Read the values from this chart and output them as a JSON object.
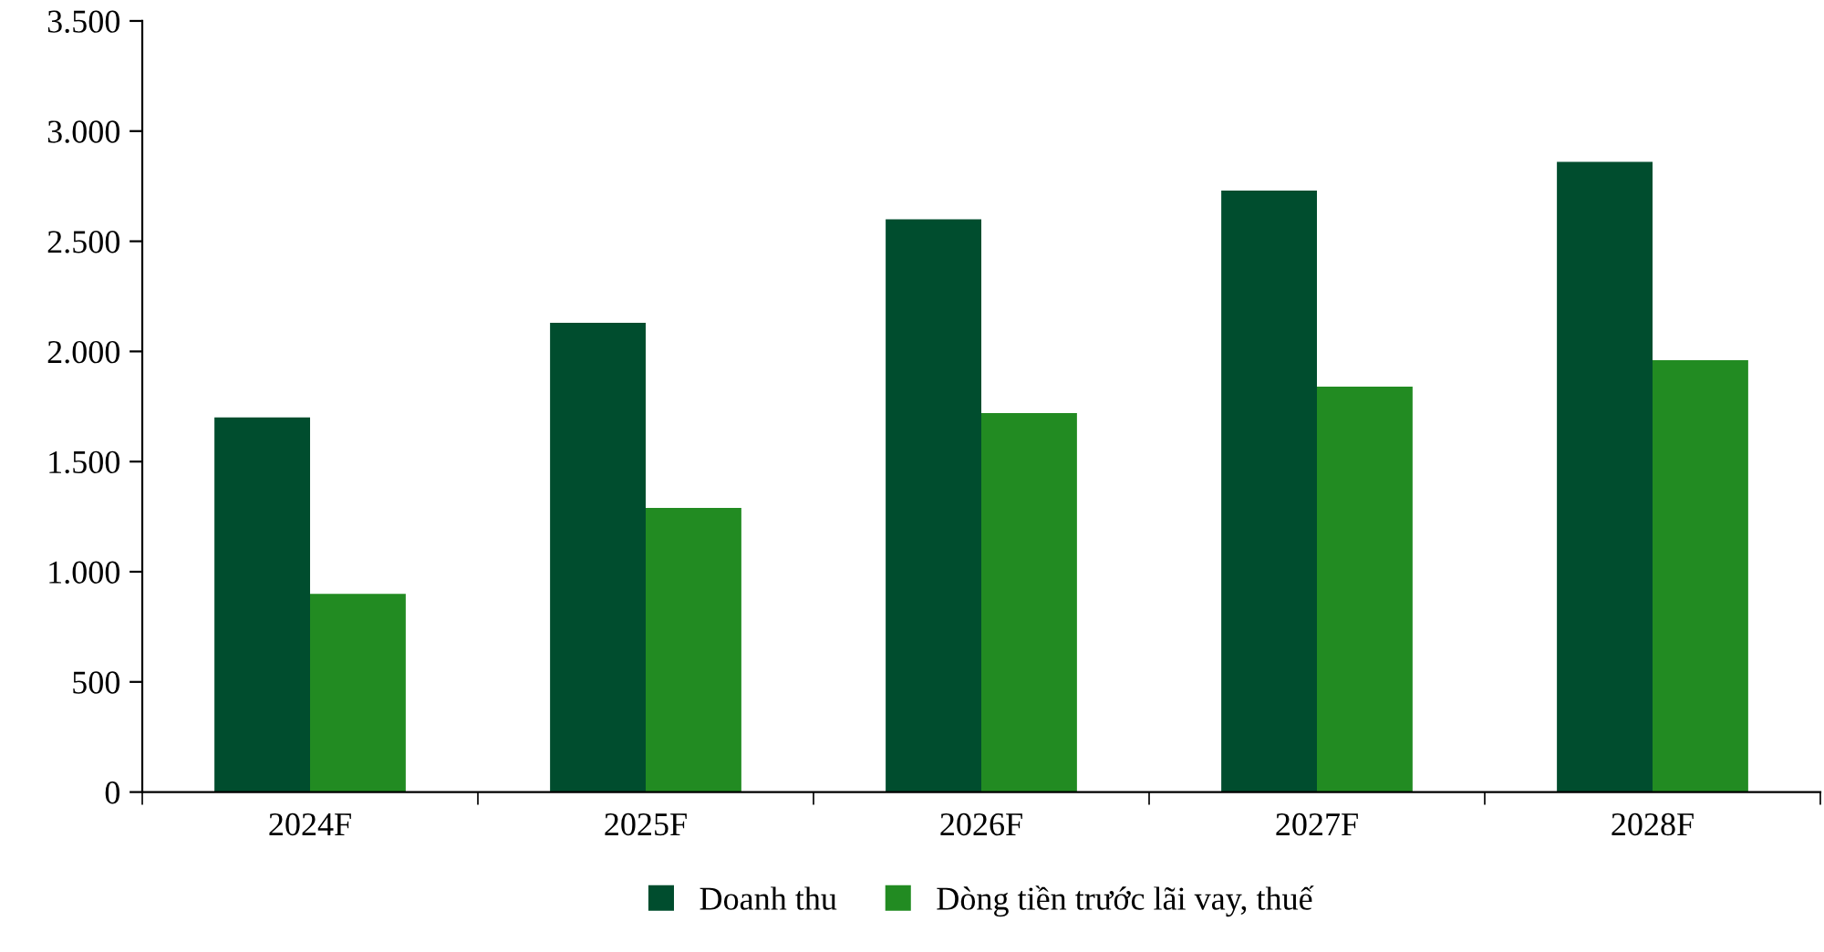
{
  "chart_data": {
    "type": "bar",
    "categories": [
      "2024F",
      "2025F",
      "2026F",
      "2027F",
      "2028F"
    ],
    "series": [
      {
        "name": "Doanh thu",
        "color": "#004d2e",
        "values": [
          1700,
          2130,
          2600,
          2730,
          2860
        ]
      },
      {
        "name": "Dòng tiền trước lãi vay, thuế",
        "color": "#228b22",
        "values": [
          900,
          1290,
          1720,
          1840,
          1960
        ]
      }
    ],
    "ylim": [
      0,
      3500
    ],
    "yticks": [
      0,
      500,
      {
        "value": 1000,
        "label": "1.000"
      },
      {
        "value": 1500,
        "label": "1.500"
      },
      {
        "value": 2000,
        "label": "2.000"
      },
      {
        "value": 2500,
        "label": "2.500"
      },
      {
        "value": 3000,
        "label": "3.000"
      },
      {
        "value": 3500,
        "label": "3.500"
      }
    ],
    "grid": false,
    "legend": "bottom"
  }
}
